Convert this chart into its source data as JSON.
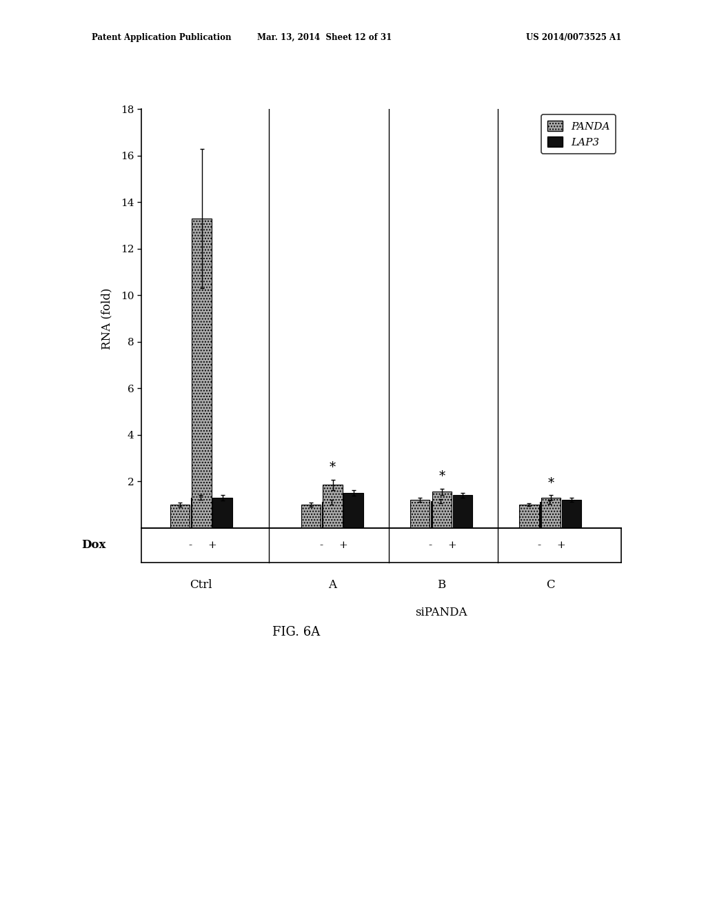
{
  "title_header_left": "Patent Application Publication",
  "title_header_mid": "Mar. 13, 2014  Sheet 12 of 31",
  "title_header_right": "US 2014/0073525 A1",
  "figure_label": "FIG. 6A",
  "ylabel": "RNA (fold)",
  "xlabel_dox": "Dox",
  "sipanda_label": "siPANDA",
  "groups": [
    "Ctrl",
    "A",
    "B",
    "C"
  ],
  "legend_labels": [
    "PANDA",
    "LAP3"
  ],
  "panda_color": "#aaaaaa",
  "lap3_color": "#111111",
  "panda_values": [
    1.0,
    13.3,
    1.0,
    1.85,
    1.2,
    1.55,
    1.0,
    1.3
  ],
  "lap3_values": [
    1.3,
    1.3,
    1.1,
    1.5,
    1.15,
    1.4,
    1.1,
    1.2
  ],
  "panda_errors": [
    0.08,
    3.0,
    0.08,
    0.22,
    0.1,
    0.13,
    0.07,
    0.1
  ],
  "lap3_errors": [
    0.1,
    0.12,
    0.09,
    0.13,
    0.09,
    0.1,
    0.07,
    0.09
  ],
  "star_indices": [
    3,
    5,
    7
  ],
  "ylim": [
    0,
    18
  ],
  "yticks": [
    2,
    4,
    6,
    8,
    10,
    12,
    14,
    16,
    18
  ],
  "bg_color": "#ffffff",
  "font_color": "#000000"
}
